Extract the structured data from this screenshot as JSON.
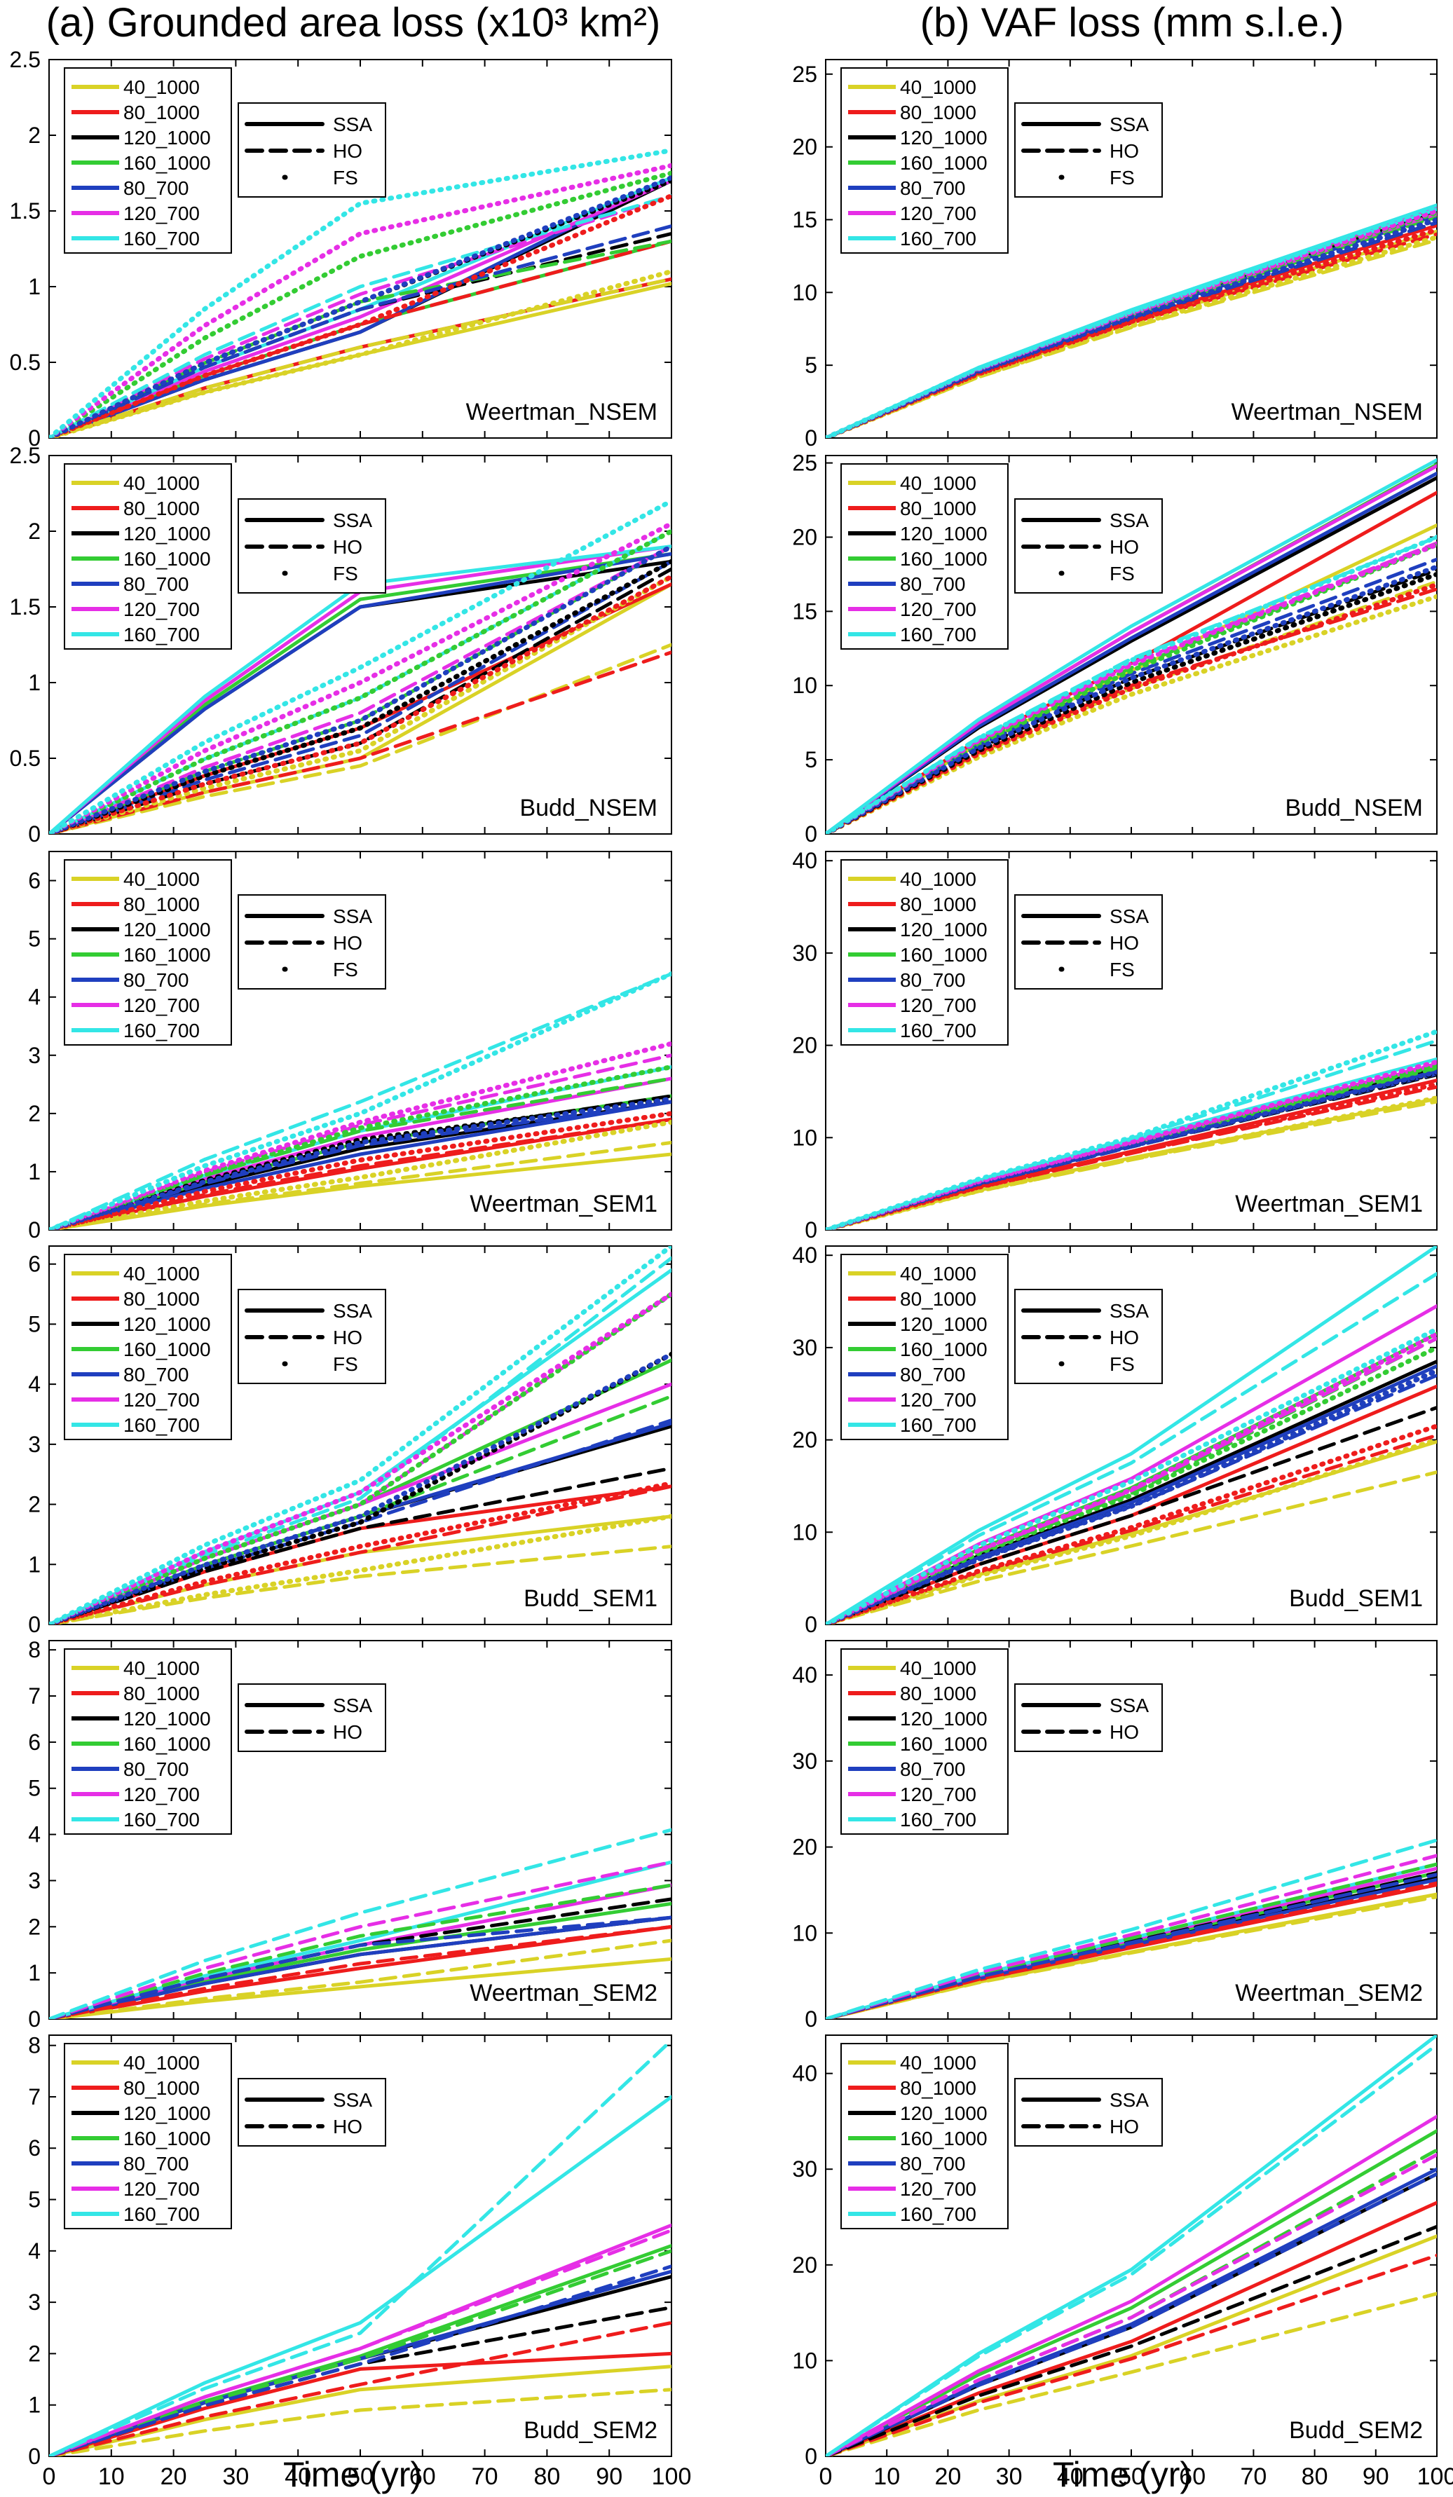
{
  "columns": [
    {
      "title": "(a) Grounded area loss (x10³ km²)"
    },
    {
      "title": "(b) VAF loss (mm s.l.e.)"
    }
  ],
  "x_axis_label": "Time (yr)",
  "x_ticks": [
    0,
    10,
    20,
    30,
    40,
    50,
    60,
    70,
    80,
    90,
    100
  ],
  "legend_runs": [
    {
      "name": "40_1000",
      "color": "#d9d226"
    },
    {
      "name": "80_1000",
      "color": "#ee1c1c"
    },
    {
      "name": "120_1000",
      "color": "#000000"
    },
    {
      "name": "160_1000",
      "color": "#33cc33"
    },
    {
      "name": "80_700",
      "color": "#1f3fbf"
    },
    {
      "name": "120_700",
      "color": "#e62ee6"
    },
    {
      "name": "160_700",
      "color": "#33e6e6"
    }
  ],
  "legend_models": [
    {
      "name": "SSA",
      "style": "solid"
    },
    {
      "name": "HO",
      "style": "dashed"
    },
    {
      "name": "FS",
      "style": "dotted"
    }
  ],
  "chart_data": [
    {
      "type": "line",
      "label": "Weertman_NSEM",
      "column": "a",
      "ylim": [
        0,
        2.5
      ],
      "yticks": [
        "0",
        "0.5",
        "1",
        "1.5",
        "2",
        "2.5"
      ],
      "ytick_values": [
        0,
        0.5,
        1,
        1.5,
        2,
        2.5
      ],
      "models": [
        "SSA",
        "HO",
        "FS"
      ],
      "final": {
        "SSA": [
          1.02,
          1.05,
          1.7,
          1.3,
          1.72,
          1.7,
          1.72
        ],
        "HO": [
          1.05,
          1.3,
          1.35,
          1.3,
          1.4,
          1.6,
          1.6
        ],
        "FS": [
          1.1,
          1.6,
          1.7,
          1.75,
          1.72,
          1.8,
          1.9
        ]
      },
      "mid": {
        "SSA": [
          0.55,
          0.6,
          0.7,
          0.75,
          0.7,
          0.8,
          0.85
        ],
        "HO": [
          0.6,
          0.75,
          0.85,
          0.9,
          0.85,
          0.95,
          1.0
        ],
        "FS": [
          0.55,
          0.75,
          0.9,
          1.2,
          0.9,
          1.35,
          1.55
        ]
      }
    },
    {
      "type": "line",
      "label": "Budd_NSEM",
      "column": "a",
      "ylim": [
        0,
        2.5
      ],
      "yticks": [
        "0",
        "0.5",
        "1",
        "1.5",
        "2",
        "2.5"
      ],
      "ytick_values": [
        0,
        0.5,
        1,
        1.5,
        2,
        2.5
      ],
      "models": [
        "SSA",
        "HO",
        "FS"
      ],
      "final": {
        "SSA": [
          1.65,
          1.65,
          1.8,
          1.85,
          1.85,
          1.9,
          1.9
        ],
        "HO": [
          1.25,
          1.2,
          1.75,
          1.9,
          1.8,
          1.9,
          2.0
        ],
        "FS": [
          1.7,
          1.7,
          1.8,
          2.0,
          1.9,
          2.05,
          2.2
        ]
      },
      "mid": {
        "SSA": [
          0.5,
          0.7,
          1.5,
          1.55,
          1.5,
          1.6,
          1.65
        ],
        "HO": [
          0.45,
          0.5,
          0.6,
          0.75,
          0.65,
          0.8,
          0.9
        ],
        "FS": [
          0.55,
          0.6,
          0.7,
          0.9,
          0.75,
          1.0,
          1.1
        ]
      }
    },
    {
      "type": "line",
      "label": "Weertman_SEM1",
      "column": "a",
      "ylim": [
        0,
        6.5
      ],
      "yticks": [
        "0",
        "1",
        "2",
        "3",
        "4",
        "5",
        "6"
      ],
      "ytick_values": [
        0,
        1,
        2,
        3,
        4,
        5,
        6
      ],
      "models": [
        "SSA",
        "HO",
        "FS"
      ],
      "final": {
        "SSA": [
          1.3,
          1.9,
          2.2,
          2.3,
          2.2,
          2.6,
          2.8
        ],
        "HO": [
          1.5,
          1.9,
          2.3,
          2.6,
          2.2,
          3.0,
          4.4
        ],
        "FS": [
          1.85,
          2.0,
          2.25,
          2.8,
          2.25,
          3.2,
          4.4
        ]
      },
      "mid": {
        "SSA": [
          0.75,
          1.05,
          1.4,
          1.5,
          1.3,
          1.6,
          1.7
        ],
        "HO": [
          0.8,
          1.1,
          1.5,
          1.7,
          1.45,
          1.8,
          2.2
        ],
        "FS": [
          0.9,
          1.2,
          1.55,
          1.75,
          1.5,
          1.85,
          2.0
        ]
      }
    },
    {
      "type": "line",
      "label": "Budd_SEM1",
      "column": "a",
      "ylim": [
        0,
        6.3
      ],
      "yticks": [
        "0",
        "1",
        "2",
        "3",
        "4",
        "5",
        "6"
      ],
      "ytick_values": [
        0,
        1,
        2,
        3,
        4,
        5,
        6
      ],
      "models": [
        "SSA",
        "HO",
        "FS"
      ],
      "final": {
        "SSA": [
          1.8,
          2.3,
          3.3,
          4.4,
          3.35,
          4.0,
          5.9
        ],
        "HO": [
          1.3,
          2.3,
          2.6,
          3.8,
          3.4,
          5.5,
          6.1
        ],
        "FS": [
          1.8,
          2.35,
          4.5,
          5.5,
          4.5,
          5.5,
          6.3
        ]
      },
      "mid": {
        "SSA": [
          1.2,
          1.6,
          1.8,
          2.0,
          1.8,
          2.0,
          2.2
        ],
        "HO": [
          0.8,
          1.2,
          1.6,
          1.8,
          1.7,
          2.0,
          2.1
        ],
        "FS": [
          0.9,
          1.3,
          1.7,
          2.0,
          1.8,
          2.2,
          2.4
        ]
      }
    },
    {
      "type": "line",
      "label": "Weertman_SEM2",
      "column": "a",
      "ylim": [
        0,
        8.2
      ],
      "yticks": [
        "0",
        "1",
        "2",
        "3",
        "4",
        "5",
        "6",
        "7",
        "8"
      ],
      "ytick_values": [
        0,
        1,
        2,
        3,
        4,
        5,
        6,
        7,
        8
      ],
      "models": [
        "SSA",
        "HO"
      ],
      "final": {
        "SSA": [
          1.3,
          2.0,
          2.2,
          2.5,
          2.2,
          2.9,
          3.4
        ],
        "HO": [
          1.7,
          2.0,
          2.6,
          2.9,
          2.2,
          3.4,
          4.1
        ]
      },
      "mid": {
        "SSA": [
          0.7,
          1.1,
          1.4,
          1.5,
          1.4,
          1.6,
          1.7
        ],
        "HO": [
          0.8,
          1.2,
          1.6,
          1.8,
          1.6,
          2.0,
          2.3
        ]
      }
    },
    {
      "type": "line",
      "label": "Budd_SEM2",
      "column": "a",
      "ylim": [
        0,
        8.2
      ],
      "yticks": [
        "0",
        "1",
        "2",
        "3",
        "4",
        "5",
        "6",
        "7",
        "8"
      ],
      "ytick_values": [
        0,
        1,
        2,
        3,
        4,
        5,
        6,
        7,
        8
      ],
      "models": [
        "SSA",
        "HO"
      ],
      "final": {
        "SSA": [
          1.75,
          2.0,
          3.5,
          4.1,
          3.6,
          4.5,
          7.0
        ],
        "HO": [
          1.3,
          2.6,
          2.9,
          4.0,
          3.7,
          4.4,
          8.1
        ]
      },
      "mid": {
        "SSA": [
          1.3,
          1.7,
          1.9,
          1.95,
          1.9,
          2.1,
          2.6
        ],
        "HO": [
          0.9,
          1.4,
          1.8,
          1.9,
          1.8,
          2.1,
          2.4
        ]
      }
    },
    {
      "type": "line",
      "label": "Weertman_NSEM",
      "column": "b",
      "ylim": [
        0,
        26
      ],
      "yticks": [
        "0",
        "5",
        "10",
        "15",
        "20",
        "25"
      ],
      "ytick_values": [
        0,
        5,
        10,
        15,
        20,
        25
      ],
      "models": [
        "SSA",
        "HO",
        "FS"
      ],
      "final": {
        "SSA": [
          14.2,
          14.6,
          15.5,
          15.8,
          15.3,
          15.9,
          16.0
        ],
        "HO": [
          13.6,
          14.0,
          14.8,
          15.2,
          14.8,
          15.4,
          15.7
        ],
        "FS": [
          13.8,
          14.3,
          15.0,
          15.5,
          15.0,
          15.6,
          15.9
        ]
      },
      "mid": {
        "SSA": [
          7.9,
          8.1,
          8.5,
          8.6,
          8.4,
          8.7,
          8.8
        ],
        "HO": [
          7.6,
          7.9,
          8.2,
          8.4,
          8.2,
          8.5,
          8.6
        ],
        "FS": [
          7.7,
          8.0,
          8.3,
          8.5,
          8.3,
          8.6,
          8.7
        ]
      }
    },
    {
      "type": "line",
      "label": "Budd_NSEM",
      "column": "b",
      "ylim": [
        0,
        25.5
      ],
      "yticks": [
        "0",
        "5",
        "10",
        "15",
        "20",
        "25"
      ],
      "ytick_values": [
        0,
        5,
        10,
        15,
        20,
        25
      ],
      "models": [
        "SSA",
        "HO",
        "FS"
      ],
      "final": {
        "SSA": [
          20.8,
          23.0,
          24.0,
          24.9,
          24.3,
          24.8,
          25.2
        ],
        "HO": [
          17.0,
          16.5,
          17.8,
          19.5,
          18.5,
          19.6,
          20.0
        ],
        "FS": [
          16.0,
          16.8,
          17.5,
          19.5,
          18.0,
          19.5,
          20.0
        ]
      },
      "mid": {
        "SSA": [
          11.0,
          11.5,
          13.0,
          13.6,
          13.2,
          13.6,
          14.0
        ],
        "HO": [
          9.8,
          10.0,
          10.5,
          11.2,
          10.8,
          11.5,
          11.8
        ],
        "FS": [
          9.4,
          9.8,
          10.2,
          11.0,
          10.5,
          11.4,
          11.7
        ]
      }
    },
    {
      "type": "line",
      "label": "Weertman_SEM1",
      "column": "b",
      "ylim": [
        0,
        41
      ],
      "yticks": [
        "0",
        "10",
        "20",
        "30",
        "40"
      ],
      "ytick_values": [
        0,
        10,
        20,
        30,
        40
      ],
      "models": [
        "SSA",
        "HO",
        "FS"
      ],
      "final": {
        "SSA": [
          14.2,
          16.2,
          17.4,
          17.8,
          17.2,
          17.9,
          18.5
        ],
        "HO": [
          13.9,
          15.5,
          16.8,
          17.5,
          16.9,
          18.0,
          20.5
        ],
        "FS": [
          14.3,
          15.8,
          17.0,
          17.8,
          17.1,
          18.2,
          21.5
        ]
      },
      "mid": {
        "SSA": [
          7.8,
          8.5,
          9.2,
          9.4,
          9.1,
          9.5,
          9.7
        ],
        "HO": [
          7.6,
          8.3,
          9.0,
          9.3,
          9.0,
          9.4,
          9.9
        ],
        "FS": [
          7.7,
          8.4,
          9.1,
          9.4,
          9.1,
          9.5,
          10.0
        ]
      }
    },
    {
      "type": "line",
      "label": "Budd_SEM1",
      "column": "b",
      "ylim": [
        0,
        41
      ],
      "yticks": [
        "0",
        "10",
        "20",
        "30",
        "40"
      ],
      "ytick_values": [
        0,
        10,
        20,
        30,
        40
      ],
      "models": [
        "SSA",
        "HO",
        "FS"
      ],
      "final": {
        "SSA": [
          19.8,
          25.8,
          28.5,
          31.5,
          28.0,
          34.5,
          41.0
        ],
        "HO": [
          16.5,
          20.5,
          23.5,
          31.0,
          27.0,
          31.0,
          38.0
        ],
        "FS": [
          20.0,
          21.5,
          27.5,
          30.0,
          27.5,
          31.5,
          32.0
        ]
      },
      "mid": {
        "SSA": [
          9.8,
          11.8,
          13.5,
          14.8,
          13.2,
          15.8,
          18.5
        ],
        "HO": [
          8.5,
          10.2,
          11.8,
          14.2,
          12.8,
          14.5,
          17.5
        ],
        "FS": [
          9.6,
          10.5,
          12.8,
          14.0,
          12.8,
          14.6,
          15.5
        ]
      }
    },
    {
      "type": "line",
      "label": "Weertman_SEM2",
      "column": "b",
      "ylim": [
        0,
        44
      ],
      "yticks": [
        "0",
        "10",
        "20",
        "30",
        "40"
      ],
      "ytick_values": [
        0,
        10,
        20,
        30,
        40
      ],
      "models": [
        "SSA",
        "HO"
      ],
      "final": {
        "SSA": [
          14.5,
          15.6,
          16.4,
          17.0,
          16.2,
          17.5,
          18.0
        ],
        "HO": [
          14.2,
          15.8,
          17.0,
          18.0,
          16.8,
          19.0,
          20.8
        ]
      },
      "mid": {
        "SSA": [
          7.8,
          8.3,
          8.7,
          9.0,
          8.6,
          9.2,
          9.4
        ],
        "HO": [
          7.7,
          8.4,
          9.0,
          9.4,
          8.9,
          9.8,
          10.4
        ]
      }
    },
    {
      "type": "line",
      "label": "Budd_SEM2",
      "column": "b",
      "ylim": [
        0,
        44
      ],
      "yticks": [
        "0",
        "10",
        "20",
        "30",
        "40"
      ],
      "ytick_values": [
        0,
        10,
        20,
        30,
        40
      ],
      "models": [
        "SSA",
        "HO"
      ],
      "final": {
        "SSA": [
          23.0,
          26.5,
          29.5,
          34.0,
          30.0,
          35.5,
          44.0
        ],
        "HO": [
          17.0,
          21.0,
          24.0,
          32.0,
          29.5,
          31.5,
          43.0
        ]
      },
      "mid": {
        "SSA": [
          10.5,
          12.0,
          13.5,
          15.5,
          13.8,
          16.2,
          19.5
        ],
        "HO": [
          8.8,
          10.2,
          11.5,
          14.5,
          13.5,
          14.5,
          19.0
        ]
      }
    }
  ]
}
